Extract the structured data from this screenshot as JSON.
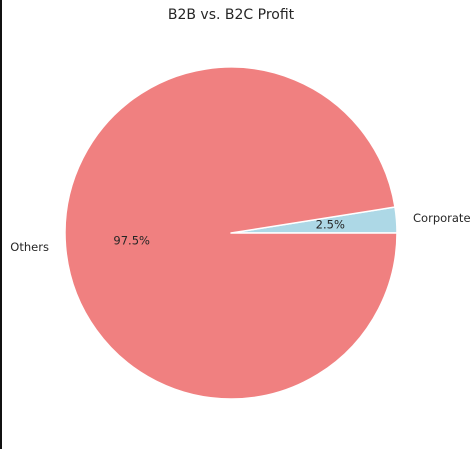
{
  "chart_data": {
    "type": "pie",
    "title": "B2B vs. B2C Profit",
    "slices": [
      {
        "label": "Corporate",
        "value": 2.5,
        "pct_label": "2.5%",
        "color": "#add8e6"
      },
      {
        "label": "Others",
        "value": 97.5,
        "pct_label": "97.5%",
        "color": "#f08080"
      }
    ],
    "start_angle_deg": 0,
    "counterclockwise": true,
    "wedge_edge_color": "#ffffff"
  }
}
